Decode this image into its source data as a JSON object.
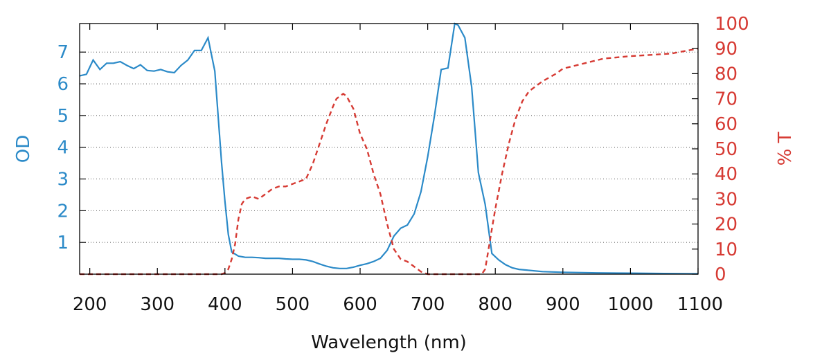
{
  "colors": {
    "od": "#2b8ac8",
    "t": "#d63a33",
    "axis": "#000000",
    "grid": "#555555"
  },
  "chart_data": {
    "type": "line",
    "title": "",
    "xlabel": "Wavelength (nm)",
    "ylabel_left": "OD",
    "ylabel_right": "% T",
    "xlim": [
      185,
      1100
    ],
    "ylim_left": [
      0,
      7.9
    ],
    "ylim_right": [
      0,
      100
    ],
    "x_ticks": [
      "200",
      "300",
      "400",
      "500",
      "600",
      "700",
      "800",
      "900",
      "1000",
      "1100"
    ],
    "x_tick_values": [
      200,
      300,
      400,
      500,
      600,
      700,
      800,
      900,
      1000,
      1100
    ],
    "y_left_ticks": [
      "1",
      "2",
      "3",
      "4",
      "5",
      "6",
      "7"
    ],
    "y_left_tick_values": [
      1,
      2,
      3,
      4,
      5,
      6,
      7
    ],
    "y_right_ticks": [
      "0",
      "10",
      "20",
      "30",
      "40",
      "50",
      "60",
      "70",
      "80",
      "90",
      "100"
    ],
    "y_right_tick_values": [
      0,
      10,
      20,
      30,
      40,
      50,
      60,
      70,
      80,
      90,
      100
    ],
    "grid": "horizontal-dotted",
    "series": [
      {
        "axis": "left",
        "style": "solid",
        "x": [
          185,
          195,
          205,
          215,
          225,
          235,
          245,
          255,
          265,
          275,
          285,
          295,
          305,
          315,
          325,
          335,
          345,
          355,
          365,
          375,
          385,
          395,
          400,
          405,
          410,
          420,
          430,
          440,
          450,
          460,
          470,
          480,
          490,
          500,
          510,
          520,
          530,
          540,
          550,
          560,
          570,
          580,
          590,
          600,
          610,
          620,
          630,
          640,
          650,
          660,
          670,
          680,
          690,
          700,
          710,
          720,
          730,
          740,
          745,
          755,
          765,
          775,
          785,
          795,
          805,
          815,
          825,
          835,
          850,
          870,
          900,
          950,
          1000,
          1050,
          1100
        ],
        "y": [
          6.25,
          6.3,
          6.75,
          6.45,
          6.65,
          6.65,
          6.7,
          6.58,
          6.48,
          6.6,
          6.42,
          6.4,
          6.45,
          6.38,
          6.35,
          6.58,
          6.75,
          7.05,
          7.05,
          7.45,
          6.4,
          3.5,
          2.3,
          1.25,
          0.7,
          0.57,
          0.53,
          0.53,
          0.52,
          0.5,
          0.5,
          0.5,
          0.48,
          0.47,
          0.47,
          0.45,
          0.4,
          0.32,
          0.25,
          0.2,
          0.18,
          0.18,
          0.22,
          0.28,
          0.33,
          0.4,
          0.5,
          0.75,
          1.2,
          1.45,
          1.55,
          1.9,
          2.6,
          3.7,
          5.0,
          6.45,
          6.5,
          7.9,
          7.85,
          7.45,
          5.9,
          3.2,
          2.2,
          0.65,
          0.45,
          0.3,
          0.2,
          0.15,
          0.12,
          0.08,
          0.06,
          0.04,
          0.03,
          0.02,
          0.01
        ]
      },
      {
        "axis": "right",
        "style": "dashed",
        "x": [
          185,
          300,
          395,
          400,
          405,
          410,
          415,
          420,
          425,
          430,
          440,
          450,
          460,
          470,
          480,
          490,
          500,
          510,
          520,
          530,
          540,
          550,
          560,
          565,
          570,
          575,
          580,
          590,
          600,
          610,
          620,
          630,
          640,
          650,
          660,
          670,
          680,
          690,
          700,
          750,
          780,
          785,
          790,
          795,
          800,
          810,
          820,
          830,
          840,
          850,
          870,
          890,
          900,
          930,
          960,
          1000,
          1030,
          1060,
          1080,
          1100
        ],
        "y": [
          0,
          0,
          0,
          0.5,
          2,
          6,
          12,
          22,
          28,
          30,
          31,
          30,
          32,
          34,
          35,
          35,
          36,
          37,
          38,
          44,
          52,
          60,
          67,
          70,
          71,
          72,
          71,
          66,
          56,
          50,
          40,
          32,
          20,
          10,
          6,
          5,
          3,
          1,
          0,
          0,
          0,
          2,
          10,
          18,
          26,
          40,
          52,
          62,
          69,
          73,
          77,
          80,
          82,
          84,
          86,
          87,
          87.5,
          88,
          89,
          90
        ]
      }
    ]
  }
}
